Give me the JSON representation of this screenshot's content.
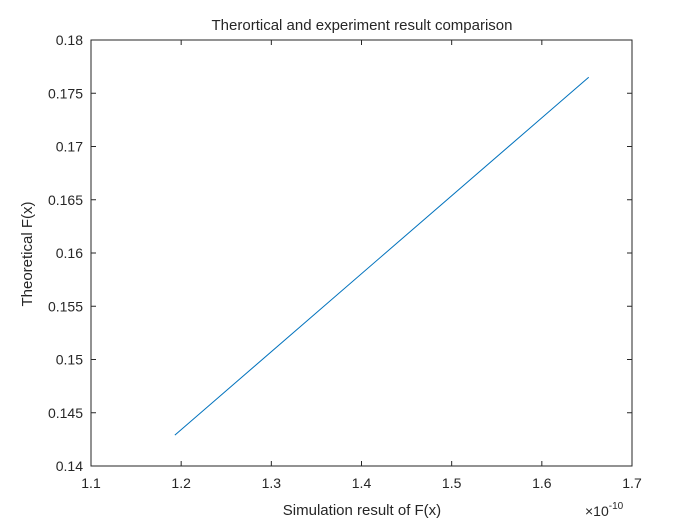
{
  "chart_data": {
    "type": "line",
    "title": "Therortical and experiment result comparison",
    "xlabel": "Simulation result of F(x)",
    "ylabel": "Theoretical F(x)",
    "x_exponent_label": "×10",
    "x_exponent_power": "-10",
    "x_scale": 1e-10,
    "xlim": [
      1.1,
      1.7
    ],
    "ylim": [
      0.14,
      0.18
    ],
    "x_ticks": [
      "1.1",
      "1.2",
      "1.3",
      "1.4",
      "1.5",
      "1.6",
      "1.7"
    ],
    "y_ticks": [
      "0.14",
      "0.145",
      "0.15",
      "0.155",
      "0.16",
      "0.165",
      "0.17",
      "0.175",
      "0.18"
    ],
    "grid": false,
    "series": [
      {
        "color": "#0072BD",
        "x": [
          1.193,
          1.652
        ],
        "y": [
          0.1429,
          0.1765
        ]
      }
    ]
  }
}
